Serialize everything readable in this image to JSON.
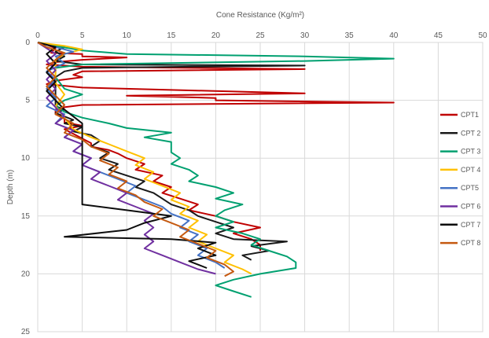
{
  "chart_data": {
    "type": "line",
    "xlabel": "Cone Resistance (Kg/m²)",
    "ylabel": "Depth (m)",
    "xlim": [
      0,
      50
    ],
    "ylim": [
      0,
      25
    ],
    "y_inverted": true,
    "x_axis_position": "top",
    "x_ticks": [
      "0",
      "5",
      "10",
      "15",
      "20",
      "25",
      "30",
      "35",
      "40",
      "45",
      "50"
    ],
    "y_ticks": [
      "0",
      "5",
      "10",
      "15",
      "20",
      "25"
    ],
    "grid": true,
    "legend_position": "right",
    "series": [
      {
        "name": "CPT1",
        "color": "#c00000",
        "points": [
          [
            0,
            0
          ],
          [
            1,
            0.2
          ],
          [
            2,
            0.5
          ],
          [
            1.5,
            0.9
          ],
          [
            5,
            1.0
          ],
          [
            5,
            1.2
          ],
          [
            10,
            1.3
          ],
          [
            5,
            1.5
          ],
          [
            2,
            1.7
          ],
          [
            1,
            1.9
          ],
          [
            5,
            2.1
          ],
          [
            30,
            2.3
          ],
          [
            5,
            2.5
          ],
          [
            4,
            2.8
          ],
          [
            5,
            3.0
          ],
          [
            2,
            3.3
          ],
          [
            1,
            3.6
          ],
          [
            5,
            3.9
          ],
          [
            30,
            4.4
          ],
          [
            10,
            4.6
          ],
          [
            20,
            4.8
          ],
          [
            20,
            5.0
          ],
          [
            40,
            5.2
          ],
          [
            5,
            5.4
          ],
          [
            3,
            5.6
          ],
          [
            2,
            5.8
          ],
          [
            2,
            6.2
          ],
          [
            3,
            6.5
          ],
          [
            3,
            6.9
          ],
          [
            5,
            7.2
          ],
          [
            3,
            7.5
          ],
          [
            4,
            7.9
          ],
          [
            5,
            8.3
          ],
          [
            6,
            8.7
          ],
          [
            6,
            9.0
          ],
          [
            8,
            9.3
          ],
          [
            9,
            9.6
          ],
          [
            10,
            10.0
          ],
          [
            12,
            10.5
          ],
          [
            11,
            11.0
          ],
          [
            14,
            11.5
          ],
          [
            13,
            12.0
          ],
          [
            15,
            12.5
          ],
          [
            14,
            13.0
          ],
          [
            16,
            13.5
          ],
          [
            18,
            14.0
          ],
          [
            17,
            14.5
          ],
          [
            20,
            15.0
          ],
          [
            22,
            15.5
          ],
          [
            25,
            16.0
          ],
          [
            22,
            16.5
          ],
          [
            24,
            17.0
          ],
          [
            25,
            17.5
          ],
          [
            25,
            18.0
          ]
        ]
      },
      {
        "name": "CPT 2",
        "color": "#1a1a1a",
        "points": [
          [
            0,
            0
          ],
          [
            1,
            0.2
          ],
          [
            3,
            0.4
          ],
          [
            2,
            0.8
          ],
          [
            3,
            1.2
          ],
          [
            2,
            1.6
          ],
          [
            5,
            1.9
          ],
          [
            30,
            2.0
          ],
          [
            5,
            2.2
          ],
          [
            3,
            2.5
          ],
          [
            2,
            3.0
          ],
          [
            2,
            3.5
          ],
          [
            2,
            4.0
          ],
          [
            2,
            4.5
          ],
          [
            2,
            5.0
          ],
          [
            2,
            5.5
          ],
          [
            3,
            5.8
          ],
          [
            2,
            6.1
          ],
          [
            3,
            6.4
          ],
          [
            4,
            6.7
          ],
          [
            3,
            7.0
          ],
          [
            5,
            7.3
          ],
          [
            4,
            7.7
          ],
          [
            6,
            8.0
          ],
          [
            7,
            8.5
          ],
          [
            6,
            9.0
          ],
          [
            8,
            9.5
          ],
          [
            7,
            10.0
          ],
          [
            9,
            10.5
          ],
          [
            8,
            11.0
          ],
          [
            10,
            11.5
          ],
          [
            12,
            12.0
          ],
          [
            11,
            12.5
          ],
          [
            13,
            13.0
          ],
          [
            14,
            13.5
          ],
          [
            15,
            14.0
          ],
          [
            17,
            14.5
          ],
          [
            18,
            15.0
          ],
          [
            20,
            15.5
          ],
          [
            22,
            16.0
          ],
          [
            20,
            16.5
          ],
          [
            22,
            17.0
          ],
          [
            28,
            17.2
          ],
          [
            24,
            17.6
          ],
          [
            26,
            18.0
          ],
          [
            23,
            18.4
          ],
          [
            24,
            18.8
          ]
        ]
      },
      {
        "name": "CPT 3",
        "color": "#00a070",
        "points": [
          [
            0,
            0
          ],
          [
            2,
            0.3
          ],
          [
            5,
            0.7
          ],
          [
            10,
            1.0
          ],
          [
            30,
            1.2
          ],
          [
            40,
            1.4
          ],
          [
            30,
            1.6
          ],
          [
            5,
            1.9
          ],
          [
            2,
            2.2
          ],
          [
            2,
            3.0
          ],
          [
            3,
            4.0
          ],
          [
            5,
            4.5
          ],
          [
            3,
            5.0
          ],
          [
            2,
            5.5
          ],
          [
            3,
            6.0
          ],
          [
            5,
            6.5
          ],
          [
            8,
            7.0
          ],
          [
            10,
            7.4
          ],
          [
            15,
            7.8
          ],
          [
            12,
            8.2
          ],
          [
            15,
            8.6
          ],
          [
            15,
            9.0
          ],
          [
            15,
            9.5
          ],
          [
            16,
            10.0
          ],
          [
            15,
            10.5
          ],
          [
            17,
            11.0
          ],
          [
            18,
            11.5
          ],
          [
            17,
            12.0
          ],
          [
            20,
            12.5
          ],
          [
            22,
            13.0
          ],
          [
            20,
            13.5
          ],
          [
            23,
            14.0
          ],
          [
            21,
            14.5
          ],
          [
            20,
            15.0
          ],
          [
            22,
            15.5
          ],
          [
            20,
            16.0
          ],
          [
            23,
            16.5
          ],
          [
            25,
            17.0
          ],
          [
            24,
            17.5
          ],
          [
            26,
            18.0
          ],
          [
            28,
            18.5
          ],
          [
            29,
            19.0
          ],
          [
            29,
            19.5
          ],
          [
            25,
            20.0
          ],
          [
            22,
            20.5
          ],
          [
            20,
            21.0
          ],
          [
            22,
            21.5
          ],
          [
            24,
            22.0
          ]
        ]
      },
      {
        "name": "CPT 4",
        "color": "#ffc000",
        "points": [
          [
            0,
            0
          ],
          [
            3,
            0.3
          ],
          [
            5,
            0.6
          ],
          [
            3,
            1.0
          ],
          [
            2,
            1.5
          ],
          [
            2,
            2.5
          ],
          [
            2,
            3.5
          ],
          [
            3,
            4.5
          ],
          [
            2,
            5.5
          ],
          [
            3,
            6.5
          ],
          [
            4,
            7.5
          ],
          [
            6,
            8.2
          ],
          [
            8,
            8.8
          ],
          [
            10,
            9.4
          ],
          [
            12,
            10.0
          ],
          [
            11,
            10.6
          ],
          [
            13,
            11.2
          ],
          [
            12,
            11.8
          ],
          [
            14,
            12.4
          ],
          [
            16,
            13.0
          ],
          [
            15,
            13.6
          ],
          [
            17,
            14.2
          ],
          [
            16,
            14.8
          ],
          [
            18,
            15.4
          ],
          [
            17,
            16.0
          ],
          [
            19,
            16.6
          ],
          [
            18,
            17.2
          ],
          [
            20,
            17.8
          ],
          [
            22,
            18.4
          ],
          [
            21,
            19.0
          ],
          [
            23,
            19.6
          ],
          [
            24,
            20.0
          ]
        ]
      },
      {
        "name": "CPT5",
        "color": "#4472c4",
        "points": [
          [
            0,
            0
          ],
          [
            2,
            0.4
          ],
          [
            4,
            0.8
          ],
          [
            2,
            1.2
          ],
          [
            3,
            1.8
          ],
          [
            1,
            2.5
          ],
          [
            2,
            3.2
          ],
          [
            1,
            4.0
          ],
          [
            2,
            4.8
          ],
          [
            1,
            5.5
          ],
          [
            3,
            6.2
          ],
          [
            2,
            7.0
          ],
          [
            4,
            7.6
          ],
          [
            3,
            8.2
          ],
          [
            5,
            8.8
          ],
          [
            4,
            9.4
          ],
          [
            6,
            10.0
          ],
          [
            5,
            10.6
          ],
          [
            7,
            11.2
          ],
          [
            9,
            11.8
          ],
          [
            11,
            12.4
          ],
          [
            10,
            13.0
          ],
          [
            12,
            13.6
          ],
          [
            14,
            14.2
          ],
          [
            15,
            14.8
          ],
          [
            17,
            15.4
          ],
          [
            16,
            16.0
          ],
          [
            18,
            16.6
          ],
          [
            17,
            17.2
          ],
          [
            19,
            17.8
          ],
          [
            18,
            18.4
          ],
          [
            20,
            19.0
          ],
          [
            21,
            19.5
          ]
        ]
      },
      {
        "name": "CPT 6",
        "color": "#7030a0",
        "points": [
          [
            0,
            0
          ],
          [
            1,
            0.5
          ],
          [
            2,
            1.0
          ],
          [
            1,
            1.6
          ],
          [
            2,
            2.4
          ],
          [
            1,
            3.2
          ],
          [
            2,
            4.0
          ],
          [
            1,
            4.8
          ],
          [
            2,
            5.6
          ],
          [
            3,
            6.4
          ],
          [
            2,
            7.0
          ],
          [
            4,
            7.6
          ],
          [
            3,
            8.2
          ],
          [
            5,
            8.8
          ],
          [
            4,
            9.4
          ],
          [
            6,
            10.0
          ],
          [
            5,
            10.6
          ],
          [
            7,
            11.2
          ],
          [
            6,
            11.8
          ],
          [
            8,
            12.4
          ],
          [
            10,
            13.0
          ],
          [
            9,
            13.6
          ],
          [
            11,
            14.2
          ],
          [
            13,
            14.8
          ],
          [
            12,
            15.4
          ],
          [
            13,
            16.0
          ],
          [
            12,
            16.6
          ],
          [
            13,
            17.2
          ],
          [
            12,
            17.8
          ],
          [
            14,
            18.4
          ],
          [
            16,
            19.0
          ],
          [
            18,
            19.6
          ],
          [
            20,
            20.0
          ]
        ]
      },
      {
        "name": "CPT 7",
        "color": "#0d0d0d",
        "points": [
          [
            0,
            0
          ],
          [
            2,
            0.4
          ],
          [
            1,
            1.0
          ],
          [
            2,
            1.8
          ],
          [
            1,
            2.6
          ],
          [
            2,
            3.4
          ],
          [
            1,
            4.2
          ],
          [
            2,
            5.0
          ],
          [
            3,
            5.8
          ],
          [
            4,
            6.4
          ],
          [
            5,
            7.0
          ],
          [
            5,
            7.6
          ],
          [
            5,
            8.4
          ],
          [
            5,
            9.2
          ],
          [
            5,
            10.0
          ],
          [
            5,
            10.8
          ],
          [
            5,
            11.6
          ],
          [
            5,
            12.4
          ],
          [
            5,
            13.2
          ],
          [
            5,
            14.0
          ],
          [
            10,
            14.5
          ],
          [
            15,
            15.0
          ],
          [
            12,
            15.6
          ],
          [
            10,
            16.2
          ],
          [
            3,
            16.8
          ],
          [
            15,
            17.0
          ],
          [
            20,
            17.3
          ],
          [
            18,
            17.8
          ],
          [
            20,
            18.4
          ],
          [
            17,
            18.9
          ],
          [
            19,
            19.5
          ]
        ]
      },
      {
        "name": "CPT 8",
        "color": "#c55a11",
        "points": [
          [
            0,
            0
          ],
          [
            1,
            0.4
          ],
          [
            3,
            0.9
          ],
          [
            2,
            1.5
          ],
          [
            1,
            2.2
          ],
          [
            2,
            3.0
          ],
          [
            1,
            3.8
          ],
          [
            2,
            4.6
          ],
          [
            3,
            5.4
          ],
          [
            2,
            6.2
          ],
          [
            4,
            7.0
          ],
          [
            3,
            7.8
          ],
          [
            5,
            8.4
          ],
          [
            6,
            9.0
          ],
          [
            8,
            9.6
          ],
          [
            7,
            10.2
          ],
          [
            9,
            10.8
          ],
          [
            8,
            11.4
          ],
          [
            10,
            12.0
          ],
          [
            9,
            12.6
          ],
          [
            11,
            13.2
          ],
          [
            12,
            13.8
          ],
          [
            14,
            14.4
          ],
          [
            13,
            15.0
          ],
          [
            15,
            15.6
          ],
          [
            17,
            16.2
          ],
          [
            16,
            16.8
          ],
          [
            18,
            17.4
          ],
          [
            20,
            18.0
          ],
          [
            19,
            18.6
          ],
          [
            21,
            19.2
          ],
          [
            22,
            19.8
          ],
          [
            21,
            20.2
          ]
        ]
      }
    ]
  }
}
